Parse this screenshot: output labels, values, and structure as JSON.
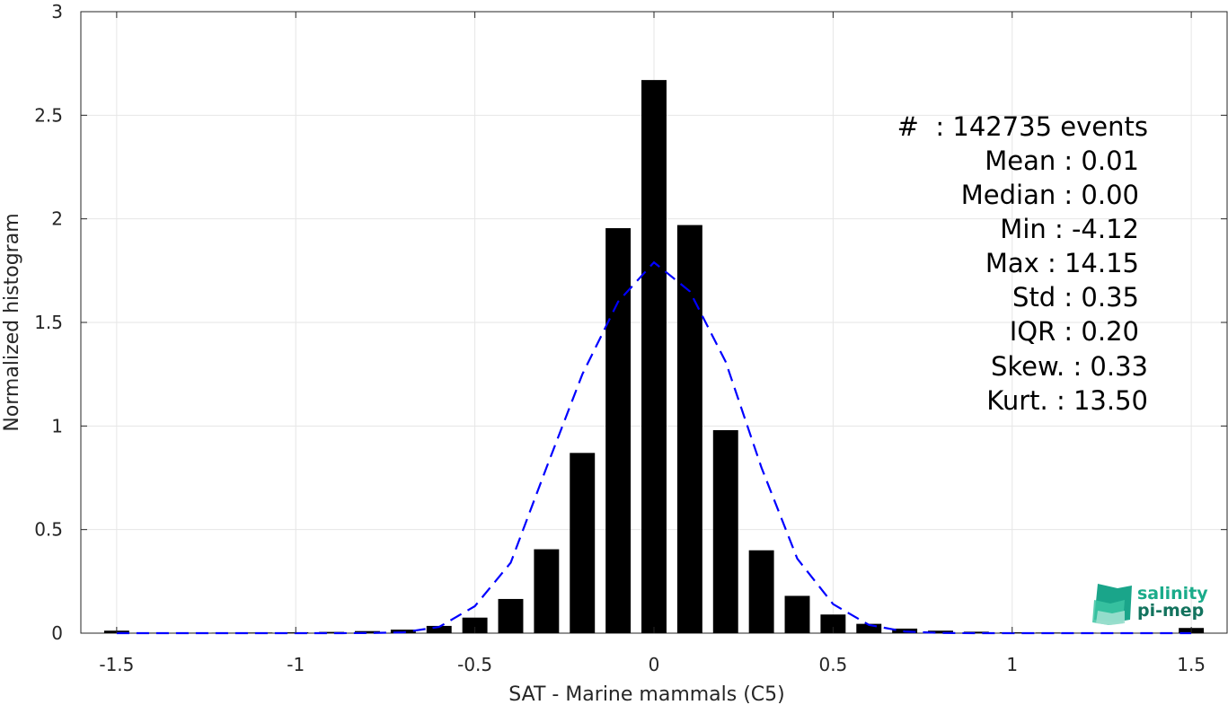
{
  "chart_data": {
    "type": "bar",
    "xlabel": "SAT - Marine mammals (C5)",
    "ylabel": "Normalized histogram",
    "xlim": [
      -1.6,
      1.6
    ],
    "ylim": [
      0,
      3
    ],
    "xticks": [
      -1.5,
      -1,
      -0.5,
      0,
      0.5,
      1,
      1.5
    ],
    "xtick_labels": [
      "-1.5",
      "-1",
      "-0.5",
      "0",
      "0.5",
      "1",
      "1.5"
    ],
    "yticks": [
      0,
      0.5,
      1,
      1.5,
      2,
      2.5,
      3
    ],
    "ytick_labels": [
      "0",
      "0.5",
      "1",
      "1.5",
      "2",
      "2.5",
      "3"
    ],
    "grid": true,
    "bar_width": 0.07,
    "bar_color": "#000000",
    "x": [
      -1.5,
      -1.4,
      -1.3,
      -1.2,
      -1.1,
      -1.0,
      -0.9,
      -0.8,
      -0.7,
      -0.6,
      -0.5,
      -0.4,
      -0.3,
      -0.2,
      -0.1,
      0.0,
      0.1,
      0.2,
      0.3,
      0.4,
      0.5,
      0.6,
      0.7,
      0.8,
      0.9,
      1.0,
      1.1,
      1.2,
      1.3,
      1.4,
      1.5
    ],
    "values": [
      0.012,
      0.002,
      0.002,
      0.002,
      0.003,
      0.004,
      0.006,
      0.01,
      0.017,
      0.035,
      0.075,
      0.165,
      0.405,
      0.87,
      1.955,
      2.67,
      1.97,
      0.98,
      0.4,
      0.18,
      0.09,
      0.045,
      0.022,
      0.012,
      0.007,
      0.004,
      0.003,
      0.002,
      0.002,
      0.002,
      0.025
    ],
    "fit_curve": {
      "style": "dashed",
      "color": "#0000ff",
      "x": [
        -1.5,
        -1.4,
        -1.3,
        -1.2,
        -1.1,
        -1.0,
        -0.9,
        -0.8,
        -0.7,
        -0.6,
        -0.5,
        -0.4,
        -0.3,
        -0.2,
        -0.1,
        0.0,
        0.1,
        0.2,
        0.3,
        0.4,
        0.5,
        0.6,
        0.7,
        0.8,
        0.9,
        1.0,
        1.1,
        1.2,
        1.3,
        1.4,
        1.5
      ],
      "y": [
        0,
        0,
        0,
        0,
        0,
        0,
        0,
        0.0005,
        0.004,
        0.03,
        0.13,
        0.34,
        0.8,
        1.25,
        1.6,
        1.79,
        1.65,
        1.31,
        0.8,
        0.36,
        0.14,
        0.04,
        0.008,
        0.001,
        0,
        0,
        0,
        0,
        0,
        0,
        0
      ]
    },
    "annotations": [
      "#  : 142735 events",
      "Mean : 0.01",
      "Median : 0.00",
      "Min : -4.12",
      "Max : 14.15",
      "Std : 0.35",
      "IQR : 0.20",
      "Skew. : 0.33",
      "Kurt. : 13.50"
    ]
  },
  "logo": {
    "line1": "salinity",
    "line2": "pi-mep",
    "color": "#1aab8a"
  }
}
